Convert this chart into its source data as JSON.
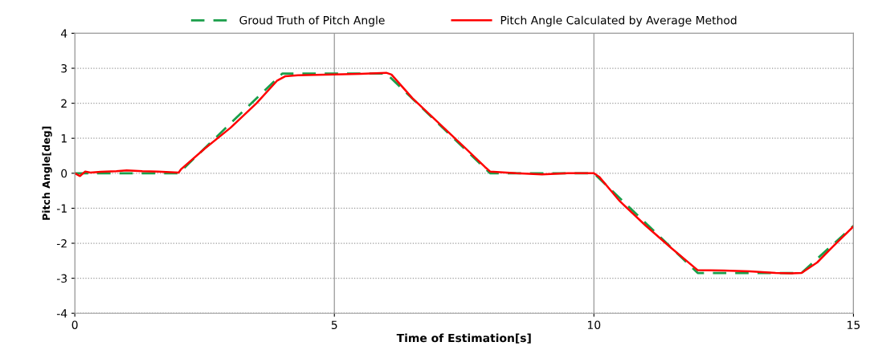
{
  "chart_data": {
    "type": "line",
    "xlabel": "Time of Estimation[s]",
    "ylabel": "Pitch Angle[deg]",
    "xlim": [
      0,
      15
    ],
    "xticks": [
      0,
      5,
      10,
      15
    ],
    "ylim": [
      -4,
      4
    ],
    "yticks": [
      -4,
      -3,
      -2,
      -1,
      0,
      1,
      2,
      3,
      4
    ],
    "grid": true,
    "legend": "top",
    "marker": "none",
    "series": [
      {
        "name": "Groud Truth of Pitch Angle",
        "color": "#1a9e4a",
        "line_style": "dashed",
        "x": [
          0,
          2,
          4,
          6,
          8,
          10,
          12,
          14,
          15
        ],
        "values": [
          0,
          0,
          2.85,
          2.85,
          0,
          0,
          -2.85,
          -2.85,
          -1.5
        ]
      },
      {
        "name": "Pitch Angle Calculated by Average Method",
        "color": "#ff0000",
        "line_style": "solid",
        "x": [
          0,
          0.1,
          0.2,
          0.3,
          0.5,
          0.8,
          1.0,
          1.3,
          1.6,
          2.0,
          2.05,
          2.5,
          3.0,
          3.5,
          3.9,
          4.05,
          4.3,
          5.0,
          5.5,
          6.0,
          6.1,
          6.5,
          7.0,
          7.5,
          7.9,
          8.0,
          8.5,
          9.0,
          9.5,
          10.0,
          10.1,
          10.5,
          11.0,
          11.5,
          12.0,
          12.5,
          13.0,
          13.5,
          13.8,
          14.0,
          14.3,
          14.6,
          15.0
        ],
        "values": [
          0,
          -0.08,
          0.05,
          0.02,
          0.04,
          0.06,
          0.08,
          0.06,
          0.05,
          0.02,
          0.12,
          0.7,
          1.3,
          2.0,
          2.65,
          2.77,
          2.8,
          2.82,
          2.84,
          2.87,
          2.82,
          2.15,
          1.45,
          0.75,
          0.18,
          0.05,
          0.0,
          -0.03,
          0.0,
          0.0,
          -0.1,
          -0.8,
          -1.5,
          -2.15,
          -2.77,
          -2.78,
          -2.8,
          -2.85,
          -2.86,
          -2.85,
          -2.55,
          -2.1,
          -1.52
        ]
      }
    ]
  }
}
